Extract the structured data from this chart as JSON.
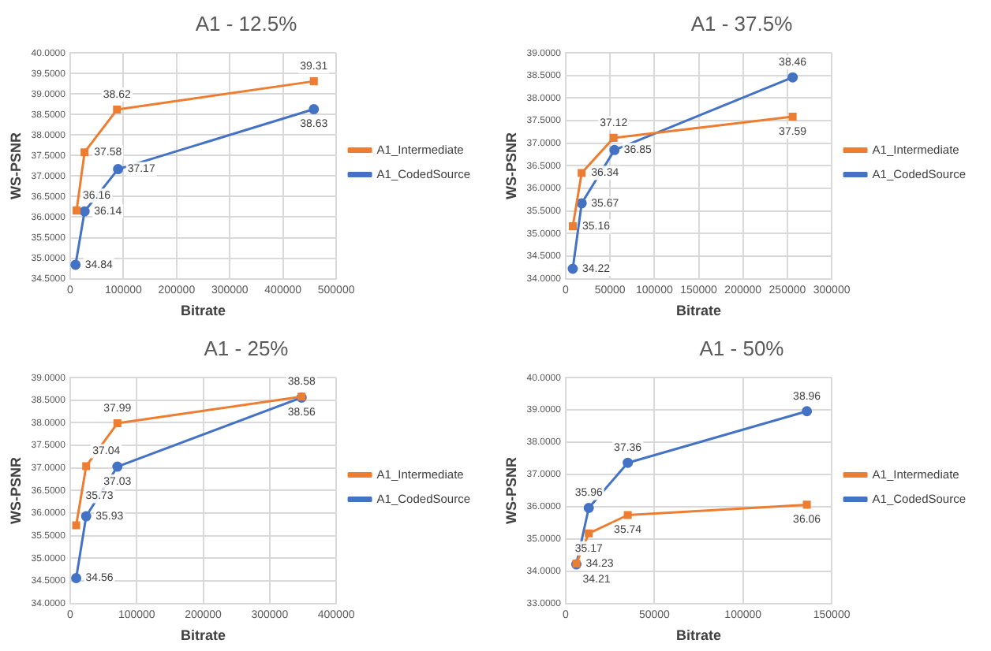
{
  "chart_data": [
    {
      "type": "line",
      "title": "A1 - 12.5%",
      "xlabel": "Bitrate",
      "ylabel": "WS-PSNR",
      "legend": "right",
      "grid": true,
      "data_labels": true,
      "line_style": "solid",
      "xlim": [
        0,
        500000
      ],
      "xticks": [
        0,
        100000,
        200000,
        300000,
        400000,
        500000
      ],
      "ylim": [
        34.5,
        40
      ],
      "yticks": [
        {
          "value": 34.5,
          "label": "34.5000"
        },
        {
          "value": 35,
          "label": "35.0000"
        },
        {
          "value": 35.5,
          "label": "35.5000"
        },
        {
          "value": 36,
          "label": "36.0000"
        },
        {
          "value": 36.5,
          "label": "36.5000"
        },
        {
          "value": 37,
          "label": "37.0000"
        },
        {
          "value": 37.5,
          "label": "37.5000"
        },
        {
          "value": 38,
          "label": "38.0000"
        },
        {
          "value": 38.5,
          "label": "38.5000"
        },
        {
          "value": 39,
          "label": "39.0000"
        },
        {
          "value": 39.5,
          "label": "39.5000"
        },
        {
          "value": 40,
          "label": "40.0000"
        }
      ],
      "series": [
        {
          "name": "A1_Intermediate",
          "color": "#ed7d31",
          "marker": "square",
          "x": [
            12000,
            27000,
            88000,
            458000
          ],
          "values": [
            36.16,
            37.58,
            38.62,
            39.31
          ]
        },
        {
          "name": "A1_CodedSource",
          "color": "#4472c4",
          "marker": "circle",
          "x": [
            10000,
            27000,
            90000,
            458000
          ],
          "values": [
            34.84,
            36.14,
            37.17,
            38.63
          ]
        }
      ]
    },
    {
      "type": "line",
      "title": "A1 - 37.5%",
      "xlabel": "Bitrate",
      "ylabel": "WS-PSNR",
      "legend": "right",
      "grid": true,
      "data_labels": true,
      "line_style": "solid",
      "xlim": [
        0,
        300000
      ],
      "xticks": [
        0,
        50000,
        100000,
        150000,
        200000,
        250000,
        300000
      ],
      "ylim": [
        34,
        39
      ],
      "yticks": [
        {
          "value": 34,
          "label": "34.0000"
        },
        {
          "value": 34.5,
          "label": "34.5000"
        },
        {
          "value": 35,
          "label": "35.0000"
        },
        {
          "value": 35.5,
          "label": "35.5000"
        },
        {
          "value": 36,
          "label": "36.0000"
        },
        {
          "value": 36.5,
          "label": "36.5000"
        },
        {
          "value": 37,
          "label": "37.0000"
        },
        {
          "value": 37.5,
          "label": "37.5000"
        },
        {
          "value": 38,
          "label": "38.0000"
        },
        {
          "value": 38.5,
          "label": "38.5000"
        },
        {
          "value": 39,
          "label": "39.0000"
        }
      ],
      "series": [
        {
          "name": "A1_Intermediate",
          "color": "#ed7d31",
          "marker": "square",
          "x": [
            8000,
            18000,
            54000,
            256000
          ],
          "values": [
            35.16,
            36.34,
            37.12,
            37.59
          ]
        },
        {
          "name": "A1_CodedSource",
          "color": "#4472c4",
          "marker": "circle",
          "x": [
            8000,
            18000,
            55000,
            256000
          ],
          "values": [
            34.22,
            35.67,
            36.85,
            38.46
          ]
        }
      ]
    },
    {
      "type": "line",
      "title": "A1 - 25%",
      "xlabel": "Bitrate",
      "ylabel": "WS-PSNR",
      "legend": "right",
      "grid": true,
      "data_labels": true,
      "line_style": "solid",
      "xlim": [
        0,
        400000
      ],
      "xticks": [
        0,
        100000,
        200000,
        300000,
        400000
      ],
      "ylim": [
        34,
        39
      ],
      "yticks": [
        {
          "value": 34,
          "label": "34.0000"
        },
        {
          "value": 34.5,
          "label": "34.5000"
        },
        {
          "value": 35,
          "label": "35.0000"
        },
        {
          "value": 35.5,
          "label": "35.5000"
        },
        {
          "value": 36,
          "label": "36.0000"
        },
        {
          "value": 36.5,
          "label": "36.5000"
        },
        {
          "value": 37,
          "label": "37.0000"
        },
        {
          "value": 37.5,
          "label": "37.5000"
        },
        {
          "value": 38,
          "label": "38.0000"
        },
        {
          "value": 38.5,
          "label": "38.5000"
        },
        {
          "value": 39,
          "label": "39.0000"
        }
      ],
      "series": [
        {
          "name": "A1_Intermediate",
          "color": "#ed7d31",
          "marker": "square",
          "x": [
            9000,
            24000,
            71000,
            348000
          ],
          "values": [
            35.73,
            37.04,
            37.99,
            38.58
          ]
        },
        {
          "name": "A1_CodedSource",
          "color": "#4472c4",
          "marker": "circle",
          "x": [
            9000,
            24000,
            71000,
            348000
          ],
          "values": [
            34.56,
            35.93,
            37.03,
            38.56
          ]
        }
      ]
    },
    {
      "type": "line",
      "title": "A1 - 50%",
      "xlabel": "Bitrate",
      "ylabel": "WS-PSNR",
      "legend": "right",
      "grid": true,
      "data_labels": true,
      "line_style": "solid",
      "xlim": [
        0,
        150000
      ],
      "xticks": [
        0,
        50000,
        100000,
        150000
      ],
      "ylim": [
        33,
        40
      ],
      "yticks": [
        {
          "value": 33,
          "label": "33.0000"
        },
        {
          "value": 34,
          "label": "34.0000"
        },
        {
          "value": 35,
          "label": "35.0000"
        },
        {
          "value": 36,
          "label": "36.0000"
        },
        {
          "value": 37,
          "label": "37.0000"
        },
        {
          "value": 38,
          "label": "38.0000"
        },
        {
          "value": 39,
          "label": "39.0000"
        },
        {
          "value": 40,
          "label": "40.0000"
        }
      ],
      "series": [
        {
          "name": "A1_Intermediate",
          "color": "#ed7d31",
          "marker": "square",
          "x": [
            6000,
            13000,
            35000,
            136000
          ],
          "values": [
            34.23,
            35.17,
            35.74,
            36.06
          ]
        },
        {
          "name": "A1_CodedSource",
          "color": "#4472c4",
          "marker": "circle",
          "x": [
            6000,
            13000,
            35000,
            136000
          ],
          "values": [
            34.21,
            35.96,
            37.36,
            38.96
          ]
        }
      ]
    }
  ]
}
